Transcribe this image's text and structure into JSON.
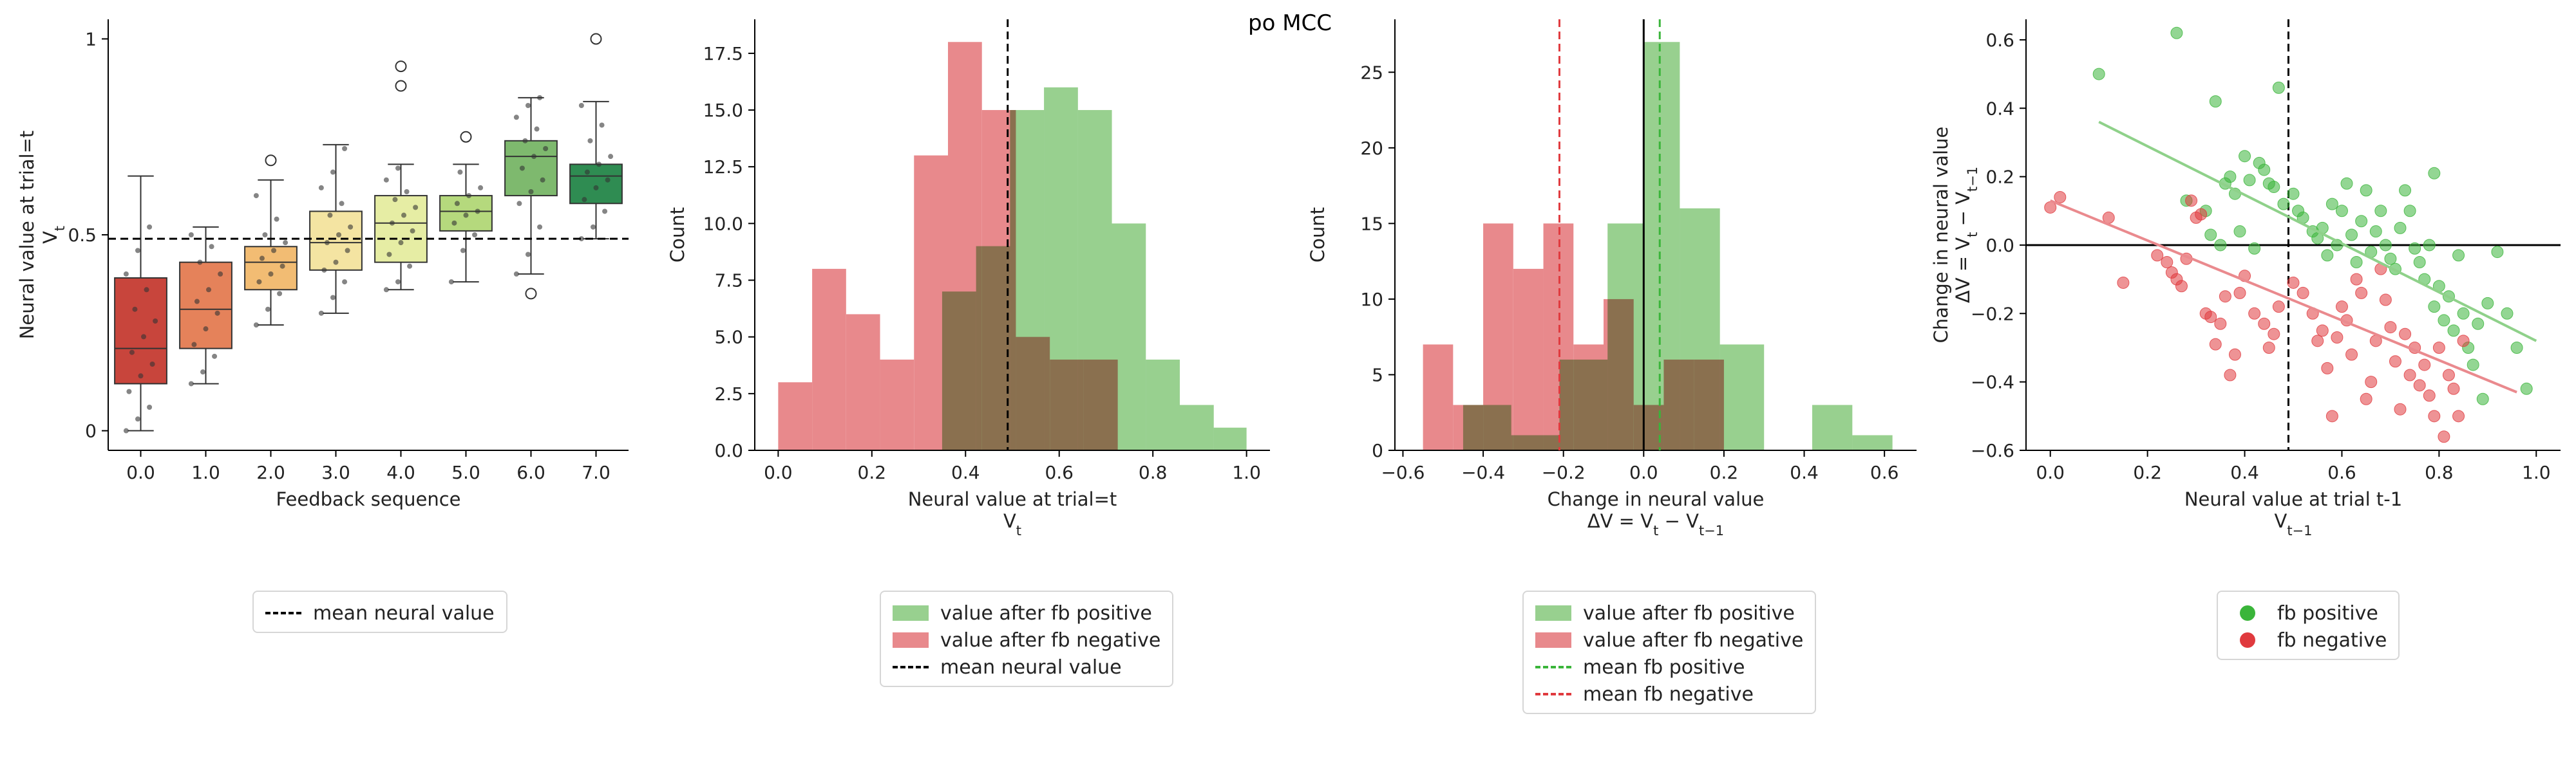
{
  "figure": {
    "suptitle": "po MCC"
  },
  "colors": {
    "positive_fill": "#98d08f",
    "negative_fill": "#e8898c",
    "overlap_fill": "#b07a5e",
    "positive_point": "#3ab53a",
    "negative_point": "#e03a3e",
    "positive_line": "#8fd18a",
    "negative_line": "#ea8a8e",
    "box_palette": [
      "#c8453c",
      "#e5825a",
      "#f2bc73",
      "#f4e4a2",
      "#e6eda4",
      "#b5d97d",
      "#7eb96e",
      "#2f8c52"
    ]
  },
  "chart_data": [
    {
      "type": "box",
      "xlabel": "Feedback sequence",
      "ylabel": "Neural value at trial=t",
      "ylabel2": "V_t",
      "categories": [
        "0.0",
        "1.0",
        "2.0",
        "3.0",
        "4.0",
        "5.0",
        "6.0",
        "7.0"
      ],
      "ylim": [
        -0.05,
        1.05
      ],
      "yticks": [
        0,
        0.5,
        1
      ],
      "ytick_labels": [
        "0",
        "0.5",
        "1"
      ],
      "mean_line": 0.49,
      "boxes": [
        {
          "q1": 0.12,
          "median": 0.21,
          "q3": 0.39,
          "whislo": 0.0,
          "whishi": 0.65,
          "outliers": []
        },
        {
          "q1": 0.21,
          "median": 0.31,
          "q3": 0.43,
          "whislo": 0.12,
          "whishi": 0.52,
          "outliers": []
        },
        {
          "q1": 0.36,
          "median": 0.43,
          "q3": 0.47,
          "whislo": 0.27,
          "whishi": 0.64,
          "outliers": [
            0.69
          ]
        },
        {
          "q1": 0.41,
          "median": 0.48,
          "q3": 0.56,
          "whislo": 0.3,
          "whishi": 0.73,
          "outliers": []
        },
        {
          "q1": 0.43,
          "median": 0.53,
          "q3": 0.6,
          "whislo": 0.36,
          "whishi": 0.68,
          "outliers": [
            0.93,
            0.88
          ]
        },
        {
          "q1": 0.51,
          "median": 0.56,
          "q3": 0.6,
          "whislo": 0.38,
          "whishi": 0.68,
          "outliers": [
            0.75
          ]
        },
        {
          "q1": 0.6,
          "median": 0.7,
          "q3": 0.74,
          "whislo": 0.4,
          "whishi": 0.85,
          "outliers": [
            0.35
          ]
        },
        {
          "q1": 0.58,
          "median": 0.65,
          "q3": 0.68,
          "whislo": 0.49,
          "whishi": 0.84,
          "outliers": [
            1.0
          ]
        }
      ],
      "points": [
        [
          0.0,
          0.03,
          0.06,
          0.1,
          0.14,
          0.17,
          0.2,
          0.24,
          0.28,
          0.31,
          0.36,
          0.4,
          0.46,
          0.52
        ],
        [
          0.12,
          0.15,
          0.19,
          0.22,
          0.26,
          0.3,
          0.33,
          0.36,
          0.4,
          0.43,
          0.47,
          0.5
        ],
        [
          0.27,
          0.31,
          0.35,
          0.38,
          0.4,
          0.42,
          0.44,
          0.46,
          0.48,
          0.5,
          0.54,
          0.6
        ],
        [
          0.3,
          0.34,
          0.38,
          0.41,
          0.43,
          0.46,
          0.48,
          0.5,
          0.52,
          0.55,
          0.58,
          0.62,
          0.66,
          0.72
        ],
        [
          0.36,
          0.38,
          0.42,
          0.45,
          0.48,
          0.51,
          0.53,
          0.55,
          0.57,
          0.59,
          0.61,
          0.64,
          0.67
        ],
        [
          0.38,
          0.46,
          0.5,
          0.53,
          0.55,
          0.56,
          0.58,
          0.6,
          0.62,
          0.66
        ],
        [
          0.4,
          0.45,
          0.52,
          0.58,
          0.61,
          0.64,
          0.67,
          0.7,
          0.72,
          0.74,
          0.77,
          0.8,
          0.83,
          0.85
        ],
        [
          0.49,
          0.52,
          0.56,
          0.59,
          0.62,
          0.64,
          0.66,
          0.68,
          0.7,
          0.74,
          0.78,
          0.83
        ]
      ],
      "legend": [
        {
          "kind": "dash",
          "color": "#000000",
          "label": "mean neural value"
        }
      ]
    },
    {
      "type": "histogram",
      "xlabel": "Neural value at trial=t",
      "xlabel2": "V_t",
      "ylabel": "Count",
      "xlim": [
        -0.05,
        1.05
      ],
      "ylim": [
        0,
        19
      ],
      "xticks": [
        0.0,
        0.2,
        0.4,
        0.6,
        0.8,
        1.0
      ],
      "xtick_labels": [
        "0.0",
        "0.2",
        "0.4",
        "0.6",
        "0.8",
        "1.0"
      ],
      "yticks": [
        0,
        2.5,
        5,
        7.5,
        10,
        12.5,
        15,
        17.5
      ],
      "ytick_labels": [
        "0.0",
        "2.5",
        "5.0",
        "7.5",
        "10.0",
        "12.5",
        "15.0",
        "17.5"
      ],
      "vline": 0.49,
      "series": [
        {
          "name": "value after fb positive",
          "edges": [
            0.35,
            0.4225,
            0.495,
            0.5675,
            0.64,
            0.7125,
            0.785,
            0.8575,
            0.93,
            1.0
          ],
          "counts": [
            7,
            9,
            15,
            16,
            15,
            10,
            4,
            2,
            1
          ]
        },
        {
          "name": "value after fb negative",
          "edges": [
            0.0,
            0.0725,
            0.145,
            0.2175,
            0.29,
            0.3625,
            0.435,
            0.5075,
            0.58,
            0.6525,
            0.725
          ],
          "counts": [
            3,
            8,
            6,
            4,
            13,
            18,
            15,
            5,
            4,
            4
          ]
        }
      ],
      "legend": [
        {
          "kind": "patch",
          "color": "#98d08f",
          "label": "value after fb positive"
        },
        {
          "kind": "patch",
          "color": "#e8898c",
          "label": "value after fb negative"
        },
        {
          "kind": "dash",
          "color": "#000000",
          "label": "mean neural value"
        }
      ]
    },
    {
      "type": "histogram",
      "xlabel": "Change in neural value",
      "xlabel2": "ΔV = V_t − V_{t−1}",
      "ylabel": "Count",
      "xlim": [
        -0.62,
        0.68
      ],
      "ylim": [
        0,
        28.5
      ],
      "xticks": [
        -0.6,
        -0.4,
        -0.2,
        0.0,
        0.2,
        0.4,
        0.6
      ],
      "xtick_labels": [
        "−0.6",
        "−0.4",
        "−0.2",
        "0.0",
        "0.2",
        "0.4",
        "0.6"
      ],
      "yticks": [
        0,
        5,
        10,
        15,
        20,
        25
      ],
      "ytick_labels": [
        "0",
        "5",
        "10",
        "15",
        "20",
        "25"
      ],
      "vline_zero": 0.0,
      "vline_pos": 0.04,
      "vline_neg": -0.21,
      "series": [
        {
          "name": "value after fb positive",
          "edges": [
            -0.45,
            -0.33,
            -0.21,
            -0.09,
            0.0,
            0.09,
            0.19,
            0.3,
            0.42,
            0.52,
            0.62
          ],
          "counts": [
            3,
            1,
            6,
            15,
            27,
            16,
            7,
            0,
            3,
            1
          ]
        },
        {
          "name": "value after fb negative",
          "edges": [
            -0.55,
            -0.475,
            -0.4,
            -0.325,
            -0.25,
            -0.175,
            -0.1,
            -0.025,
            0.05,
            0.125,
            0.2
          ],
          "counts": [
            7,
            3,
            15,
            12,
            15,
            7,
            10,
            3,
            6,
            6
          ]
        }
      ],
      "legend": [
        {
          "kind": "patch",
          "color": "#98d08f",
          "label": "value after fb positive"
        },
        {
          "kind": "patch",
          "color": "#e8898c",
          "label": "value after fb negative"
        },
        {
          "kind": "dash",
          "color": "#3ab53a",
          "label": "mean fb positive"
        },
        {
          "kind": "dash",
          "color": "#e03a3e",
          "label": "mean fb negative"
        }
      ]
    },
    {
      "type": "scatter",
      "xlabel": "Neural value at trial t-1",
      "xlabel2": "V_{t−1}",
      "ylabel": "Change in neural value",
      "ylabel2": "ΔV = V_t − V_{t−1}",
      "xlim": [
        -0.05,
        1.05
      ],
      "ylim": [
        -0.6,
        0.66
      ],
      "xticks": [
        0.0,
        0.2,
        0.4,
        0.6,
        0.8,
        1.0
      ],
      "xtick_labels": [
        "0.0",
        "0.2",
        "0.4",
        "0.6",
        "0.8",
        "1.0"
      ],
      "yticks": [
        -0.6,
        -0.4,
        -0.2,
        0.0,
        0.2,
        0.4,
        0.6
      ],
      "ytick_labels": [
        "−0.6",
        "−0.4",
        "−0.2",
        "0.0",
        "0.2",
        "0.4",
        "0.6"
      ],
      "vline": 0.49,
      "hline": 0.0,
      "fit_positive": [
        [
          0.1,
          0.36
        ],
        [
          1.0,
          -0.28
        ]
      ],
      "fit_negative": [
        [
          0.0,
          0.13
        ],
        [
          0.96,
          -0.43
        ]
      ],
      "series": [
        {
          "name": "fb positive",
          "points": [
            [
              0.1,
              0.5
            ],
            [
              0.26,
              0.62
            ],
            [
              0.34,
              0.42
            ],
            [
              0.47,
              0.46
            ],
            [
              0.79,
              0.21
            ],
            [
              0.28,
              0.13
            ],
            [
              0.32,
              0.1
            ],
            [
              0.36,
              0.18
            ],
            [
              0.37,
              0.2
            ],
            [
              0.38,
              0.15
            ],
            [
              0.4,
              0.26
            ],
            [
              0.41,
              0.19
            ],
            [
              0.43,
              0.24
            ],
            [
              0.44,
              0.22
            ],
            [
              0.45,
              0.18
            ],
            [
              0.46,
              0.17
            ],
            [
              0.48,
              0.12
            ],
            [
              0.5,
              0.15
            ],
            [
              0.51,
              0.1
            ],
            [
              0.52,
              0.08
            ],
            [
              0.54,
              0.04
            ],
            [
              0.55,
              0.02
            ],
            [
              0.56,
              0.05
            ],
            [
              0.58,
              0.12
            ],
            [
              0.59,
              0.0
            ],
            [
              0.6,
              0.1
            ],
            [
              0.61,
              0.18
            ],
            [
              0.62,
              0.03
            ],
            [
              0.63,
              -0.05
            ],
            [
              0.64,
              0.07
            ],
            [
              0.65,
              0.16
            ],
            [
              0.66,
              -0.02
            ],
            [
              0.67,
              0.04
            ],
            [
              0.68,
              0.1
            ],
            [
              0.69,
              0.0
            ],
            [
              0.7,
              -0.04
            ],
            [
              0.71,
              -0.07
            ],
            [
              0.72,
              0.05
            ],
            [
              0.73,
              0.16
            ],
            [
              0.74,
              0.1
            ],
            [
              0.75,
              -0.01
            ],
            [
              0.76,
              -0.05
            ],
            [
              0.77,
              -0.1
            ],
            [
              0.78,
              0.0
            ],
            [
              0.79,
              -0.18
            ],
            [
              0.8,
              -0.12
            ],
            [
              0.81,
              -0.22
            ],
            [
              0.82,
              -0.15
            ],
            [
              0.83,
              -0.25
            ],
            [
              0.84,
              -0.03
            ],
            [
              0.85,
              -0.2
            ],
            [
              0.86,
              -0.3
            ],
            [
              0.87,
              -0.35
            ],
            [
              0.88,
              -0.23
            ],
            [
              0.89,
              -0.45
            ],
            [
              0.9,
              -0.17
            ],
            [
              0.92,
              -0.02
            ],
            [
              0.94,
              -0.2
            ],
            [
              0.96,
              -0.3
            ],
            [
              0.98,
              -0.42
            ],
            [
              0.33,
              0.03
            ],
            [
              0.35,
              0.0
            ],
            [
              0.39,
              0.04
            ],
            [
              0.42,
              -0.01
            ],
            [
              0.57,
              -0.03
            ]
          ]
        },
        {
          "name": "fb negative",
          "points": [
            [
              0.0,
              0.11
            ],
            [
              0.02,
              0.14
            ],
            [
              0.12,
              0.08
            ],
            [
              0.15,
              -0.11
            ],
            [
              0.22,
              -0.03
            ],
            [
              0.24,
              -0.05
            ],
            [
              0.25,
              -0.08
            ],
            [
              0.26,
              -0.1
            ],
            [
              0.27,
              -0.12
            ],
            [
              0.28,
              -0.04
            ],
            [
              0.29,
              0.13
            ],
            [
              0.3,
              0.08
            ],
            [
              0.31,
              0.09
            ],
            [
              0.32,
              -0.2
            ],
            [
              0.33,
              -0.21
            ],
            [
              0.34,
              -0.29
            ],
            [
              0.35,
              -0.23
            ],
            [
              0.36,
              -0.15
            ],
            [
              0.37,
              -0.38
            ],
            [
              0.38,
              -0.32
            ],
            [
              0.39,
              -0.14
            ],
            [
              0.4,
              -0.09
            ],
            [
              0.42,
              -0.2
            ],
            [
              0.44,
              -0.23
            ],
            [
              0.45,
              -0.3
            ],
            [
              0.46,
              -0.26
            ],
            [
              0.47,
              -0.18
            ],
            [
              0.5,
              -0.11
            ],
            [
              0.52,
              -0.14
            ],
            [
              0.54,
              -0.2
            ],
            [
              0.55,
              -0.28
            ],
            [
              0.56,
              -0.25
            ],
            [
              0.57,
              -0.36
            ],
            [
              0.58,
              -0.5
            ],
            [
              0.59,
              -0.27
            ],
            [
              0.6,
              -0.18
            ],
            [
              0.61,
              -0.22
            ],
            [
              0.62,
              -0.32
            ],
            [
              0.63,
              -0.1
            ],
            [
              0.64,
              -0.14
            ],
            [
              0.65,
              -0.45
            ],
            [
              0.66,
              -0.4
            ],
            [
              0.67,
              -0.28
            ],
            [
              0.68,
              -0.07
            ],
            [
              0.69,
              -0.16
            ],
            [
              0.7,
              -0.24
            ],
            [
              0.71,
              -0.34
            ],
            [
              0.72,
              -0.48
            ],
            [
              0.73,
              -0.26
            ],
            [
              0.74,
              -0.38
            ],
            [
              0.75,
              -0.3
            ],
            [
              0.76,
              -0.41
            ],
            [
              0.77,
              -0.35
            ],
            [
              0.78,
              -0.44
            ],
            [
              0.79,
              -0.5
            ],
            [
              0.8,
              -0.3
            ],
            [
              0.81,
              -0.56
            ],
            [
              0.82,
              -0.38
            ],
            [
              0.83,
              -0.42
            ],
            [
              0.84,
              -0.5
            ],
            [
              0.85,
              -0.28
            ]
          ]
        }
      ],
      "legend": [
        {
          "kind": "dot",
          "color": "#3ab53a",
          "label": "fb positive"
        },
        {
          "kind": "dot",
          "color": "#e03a3e",
          "label": "fb negative"
        }
      ]
    }
  ]
}
